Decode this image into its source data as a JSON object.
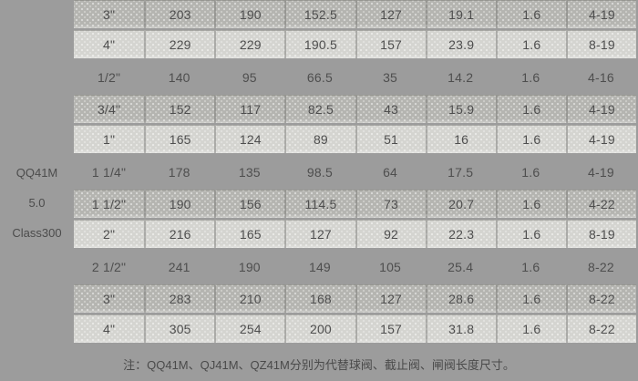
{
  "page": {
    "background_color": "#9c9c9c",
    "row_color_dark": "#b4b4b0",
    "row_color_light": "#d4d4d0",
    "text_color": "#4e4e4e"
  },
  "label_column": {
    "lines": [
      "QQ41M",
      "5.0",
      "Class300"
    ]
  },
  "table": {
    "columns": 8,
    "rows": [
      {
        "style": "A",
        "cells": [
          "3\"",
          "203",
          "190",
          "152.5",
          "127",
          "19.1",
          "1.6",
          "4-19"
        ]
      },
      {
        "style": "B",
        "cells": [
          "4\"",
          "229",
          "229",
          "190.5",
          "157",
          "23.9",
          "1.6",
          "8-19"
        ]
      },
      {
        "style": "C",
        "cells": [
          "1/2\"",
          "140",
          "95",
          "66.5",
          "35",
          "14.2",
          "1.6",
          "4-16"
        ]
      },
      {
        "style": "A",
        "cells": [
          "3/4\"",
          "152",
          "117",
          "82.5",
          "43",
          "15.9",
          "1.6",
          "4-19"
        ]
      },
      {
        "style": "B",
        "cells": [
          "1\"",
          "165",
          "124",
          "89",
          "51",
          "16",
          "1.6",
          "4-19"
        ]
      },
      {
        "style": "C",
        "cells": [
          "1 1/4\"",
          "178",
          "135",
          "98.5",
          "64",
          "17.5",
          "1.6",
          "4-19"
        ]
      },
      {
        "style": "A",
        "cells": [
          "1 1/2\"",
          "190",
          "156",
          "114.5",
          "73",
          "20.7",
          "1.6",
          "4-22"
        ]
      },
      {
        "style": "B",
        "cells": [
          "2\"",
          "216",
          "165",
          "127",
          "92",
          "22.3",
          "1.6",
          "8-19"
        ]
      },
      {
        "style": "C",
        "cells": [
          "2 1/2\"",
          "241",
          "190",
          "149",
          "105",
          "25.4",
          "1.6",
          "8-22"
        ]
      },
      {
        "style": "A",
        "cells": [
          "3\"",
          "283",
          "210",
          "168",
          "127",
          "28.6",
          "1.6",
          "8-22"
        ]
      },
      {
        "style": "B",
        "cells": [
          "4\"",
          "305",
          "254",
          "200",
          "157",
          "31.8",
          "1.6",
          "8-22"
        ]
      }
    ]
  },
  "note": {
    "text": "注：QQ41M、QJ41M、QZ41M分别为代替球阀、截止阀、闸阀长度尺寸。"
  }
}
